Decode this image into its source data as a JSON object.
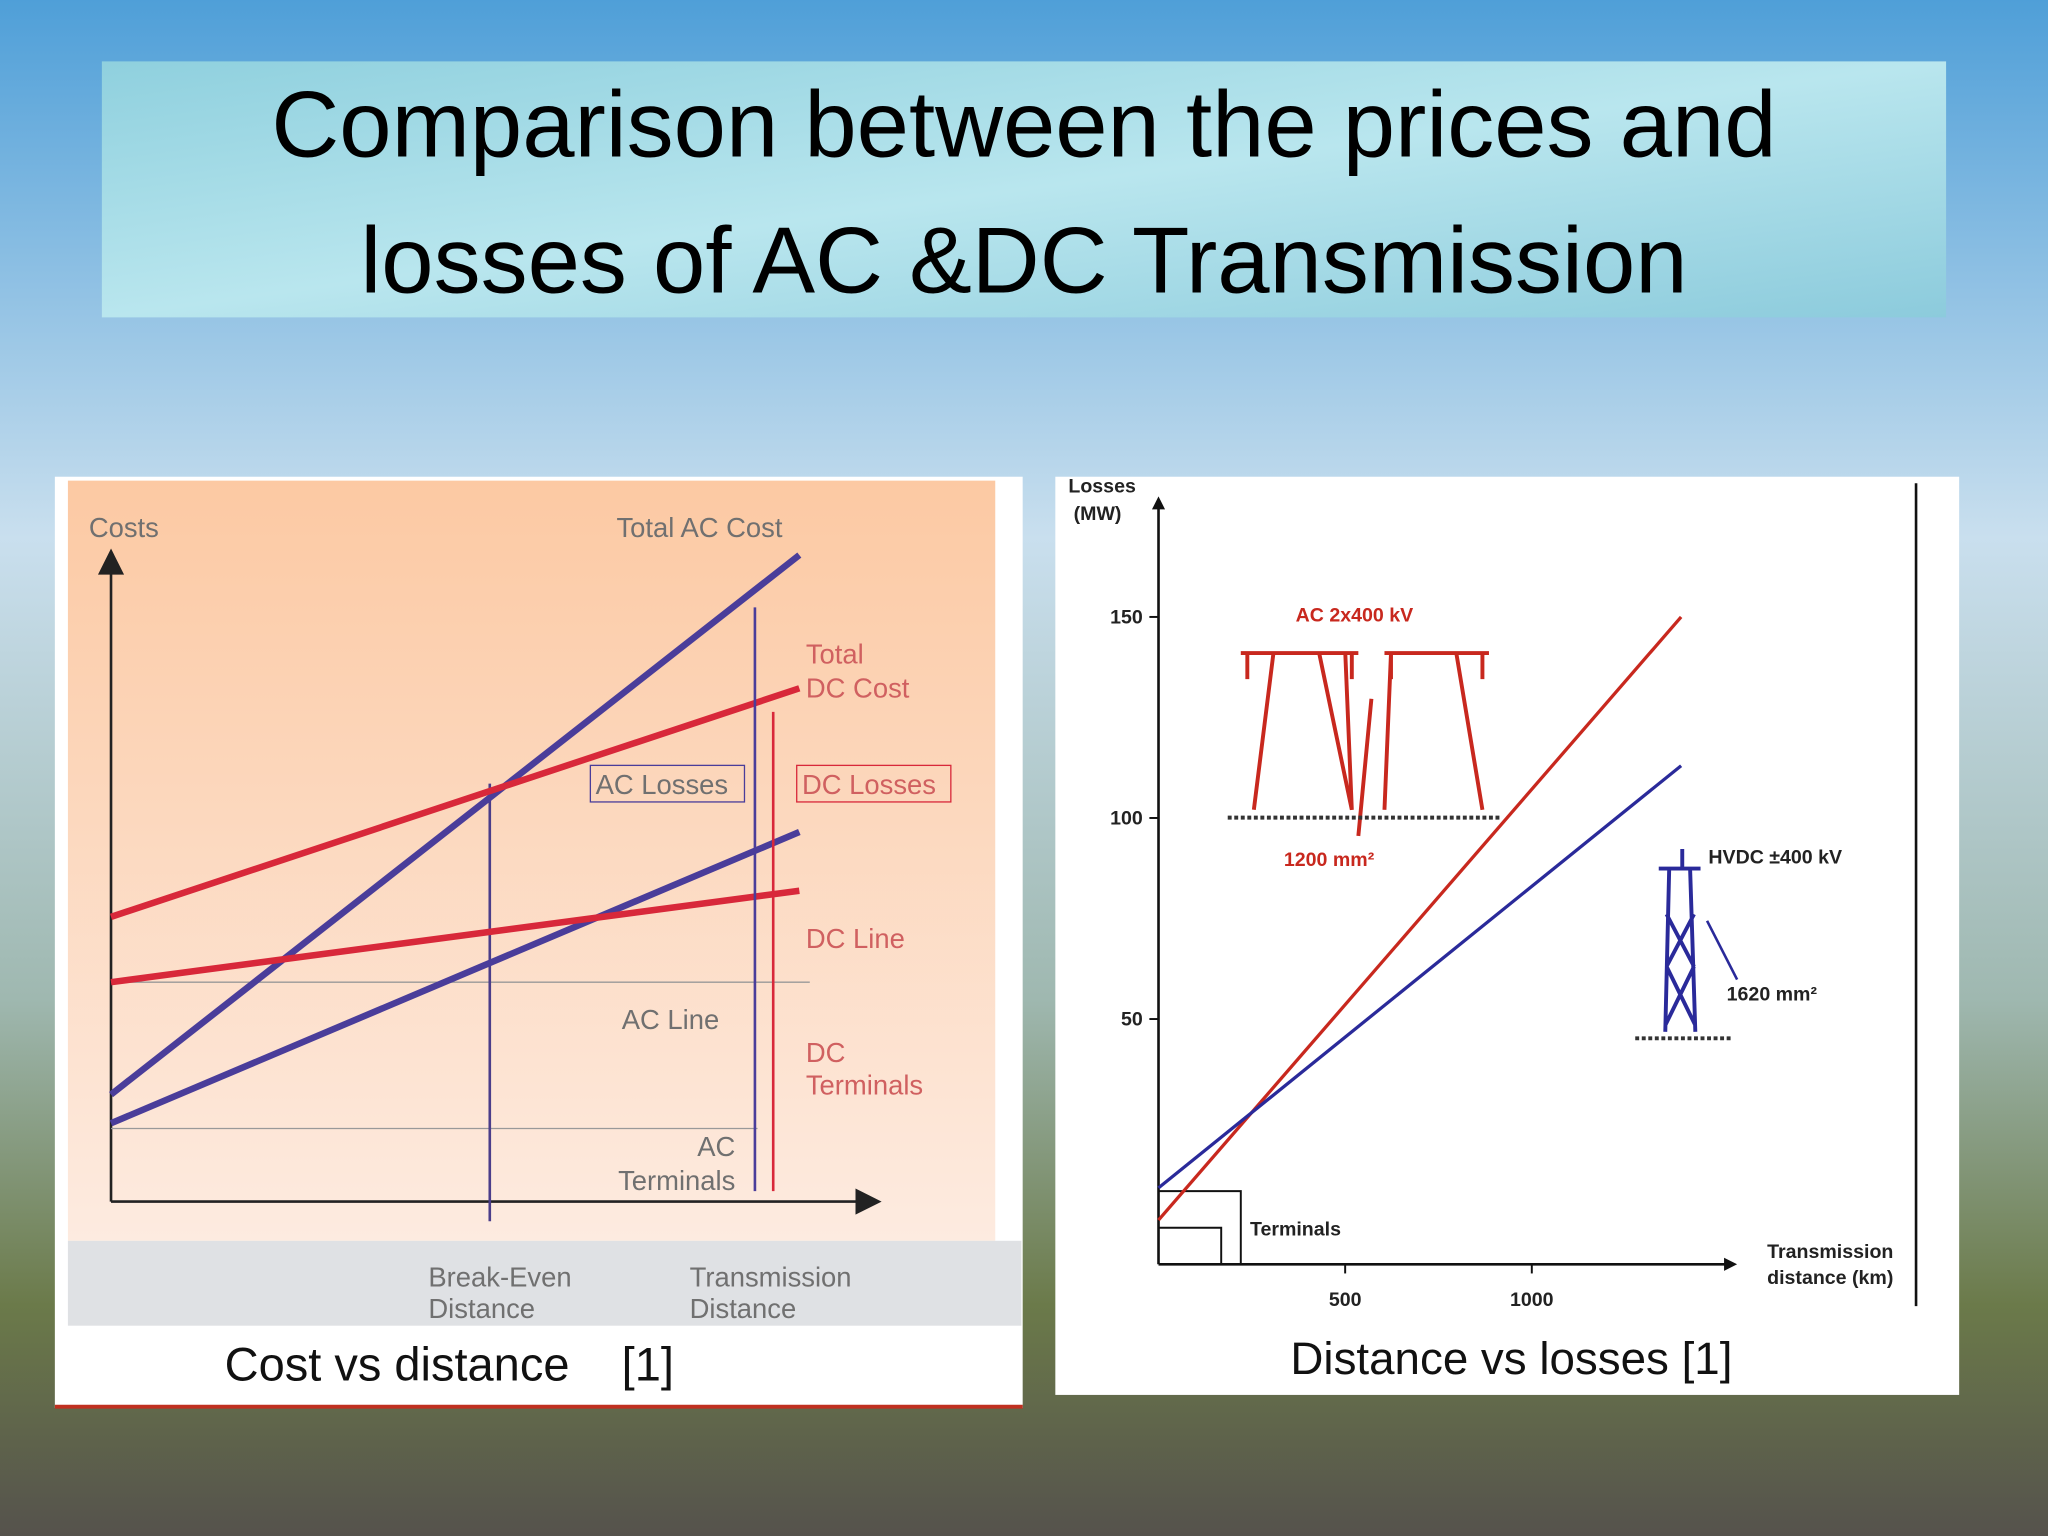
{
  "title": [
    "Comparison between the prices and",
    "losses of AC &DC Transmission"
  ],
  "left_figure": {
    "y_axis": "Costs",
    "total_ac_cost": "Total AC Cost",
    "total_dc_cost": [
      "Total",
      "DC Cost"
    ],
    "ac_losses": "AC Losses",
    "dc_losses": "DC Losses",
    "dc_line": "DC Line",
    "ac_line": "AC Line",
    "dc_terminals": [
      "DC",
      "Terminals"
    ],
    "ac_terminals": [
      "AC",
      "Terminals"
    ],
    "break_even": [
      "Break-Even",
      "Distance"
    ],
    "transmission_distance": [
      "Transmission",
      "Distance"
    ],
    "caption": "Cost vs distance    [1]"
  },
  "chart_data": {
    "type": "line",
    "ylabel": [
      "Losses",
      "(MW)"
    ],
    "xlabel": [
      "Transmission",
      "distance (km)"
    ],
    "x": [
      0,
      1400
    ],
    "series": [
      {
        "name": "AC 2x400 kV",
        "color": "#c8281e",
        "values": [
          0,
          150
        ]
      },
      {
        "name": "HVDC ±400 kV",
        "color": "#2a2a9a",
        "values": [
          8,
          113
        ]
      }
    ],
    "annotations": {
      "ac_conductor": "1200 mm²",
      "dc_conductor": "1620 mm²",
      "terminals": "Terminals"
    },
    "xlim": [
      0,
      1550
    ],
    "xticks": [
      500,
      1000
    ],
    "ylim": [
      -11,
      180
    ],
    "yticks": [
      50,
      100,
      150
    ],
    "caption": "Distance vs losses [1]"
  }
}
